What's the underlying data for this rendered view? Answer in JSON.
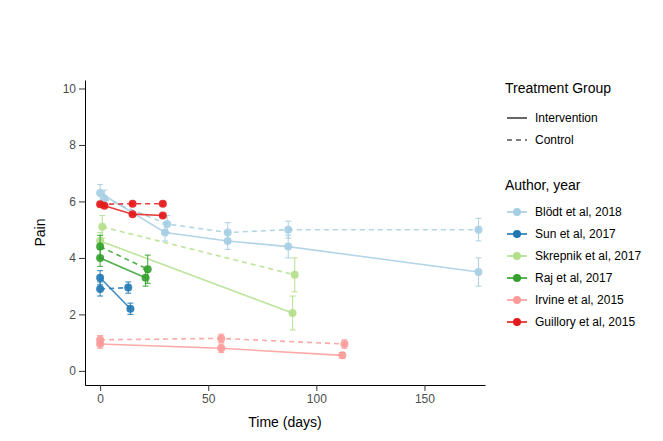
{
  "chart_data": {
    "type": "line",
    "x_label": "Time (days)",
    "y_label": "Pain",
    "xlim": [
      -7,
      178
    ],
    "xticks": [
      0,
      50,
      100,
      150
    ],
    "ylim": [
      -0.5,
      10.3
    ],
    "yticks": [
      0,
      2,
      4,
      6,
      8,
      10
    ],
    "grid": false,
    "marker": "circle",
    "group_legend": {
      "title": "Treatment Group",
      "labels": [
        "Intervention",
        "Control"
      ],
      "line_styles": [
        "solid",
        "dashed"
      ]
    },
    "legend_title": "Author, year",
    "legend": "right",
    "series": [
      {
        "name": "Blödt et al, 2018",
        "color": "#a6cee3",
        "line_style": "solid",
        "x": [
          0,
          30,
          59,
          87,
          175
        ],
        "values": [
          6.3,
          4.9,
          4.6,
          4.4,
          3.5
        ],
        "errors": [
          0.3,
          0.3,
          0.3,
          0.4,
          0.5
        ]
      },
      {
        "name": "Blödt et al, 2018",
        "color": "#a6cee3",
        "line_style": "dashed",
        "x": [
          2,
          31,
          59,
          87,
          175
        ],
        "values": [
          6.1,
          5.2,
          4.9,
          5.0,
          5.0
        ],
        "errors": [
          0.3,
          0.3,
          0.35,
          0.3,
          0.4
        ]
      },
      {
        "name": "Sun et al, 2017",
        "color": "#1f78b4",
        "line_style": "solid",
        "x": [
          0,
          14
        ],
        "values": [
          3.3,
          2.2
        ],
        "errors": [
          0.25,
          0.2
        ]
      },
      {
        "name": "Sun et al, 2017",
        "color": "#1f78b4",
        "line_style": "dashed",
        "x": [
          0,
          13
        ],
        "values": [
          2.9,
          2.95
        ],
        "errors": [
          0.25,
          0.2
        ]
      },
      {
        "name": "Skrepnik et al, 2017",
        "color": "#b2df8a",
        "line_style": "solid",
        "x": [
          0,
          89
        ],
        "values": [
          4.6,
          2.05
        ],
        "errors": [
          0.3,
          0.6
        ]
      },
      {
        "name": "Skrepnik et al, 2017",
        "color": "#b2df8a",
        "line_style": "dashed",
        "x": [
          1,
          90
        ],
        "values": [
          5.1,
          3.4
        ],
        "errors": [
          0.4,
          0.6
        ]
      },
      {
        "name": "Raj et al, 2017",
        "color": "#33a02c",
        "line_style": "solid",
        "x": [
          0,
          21
        ],
        "values": [
          4.0,
          3.3
        ],
        "errors": [
          0.3,
          0.3
        ]
      },
      {
        "name": "Raj et al, 2017",
        "color": "#33a02c",
        "line_style": "dashed",
        "x": [
          0,
          22
        ],
        "values": [
          4.4,
          3.6
        ],
        "errors": [
          0.4,
          0.5
        ]
      },
      {
        "name": "Irvine et al, 2015",
        "color": "#fb9a99",
        "line_style": "solid",
        "x": [
          0,
          56,
          112
        ],
        "values": [
          0.95,
          0.8,
          0.55
        ],
        "errors": [
          0.15,
          0.15,
          0.1
        ]
      },
      {
        "name": "Irvine et al, 2015",
        "color": "#fb9a99",
        "line_style": "dashed",
        "x": [
          0,
          56,
          113
        ],
        "values": [
          1.1,
          1.15,
          0.95
        ],
        "errors": [
          0.15,
          0.15,
          0.15
        ]
      },
      {
        "name": "Guillory et al, 2015",
        "color": "#e31a1c",
        "line_style": "solid",
        "x": [
          2,
          15,
          29
        ],
        "values": [
          5.85,
          5.55,
          5.5
        ],
        "errors": [
          0.05,
          0.05,
          0.05
        ]
      },
      {
        "name": "Guillory et al, 2015",
        "color": "#e31a1c",
        "line_style": "dashed",
        "x": [
          0,
          15,
          29
        ],
        "values": [
          5.9,
          5.92,
          5.92
        ],
        "errors": [
          0.05,
          0.05,
          0.05
        ]
      }
    ]
  }
}
